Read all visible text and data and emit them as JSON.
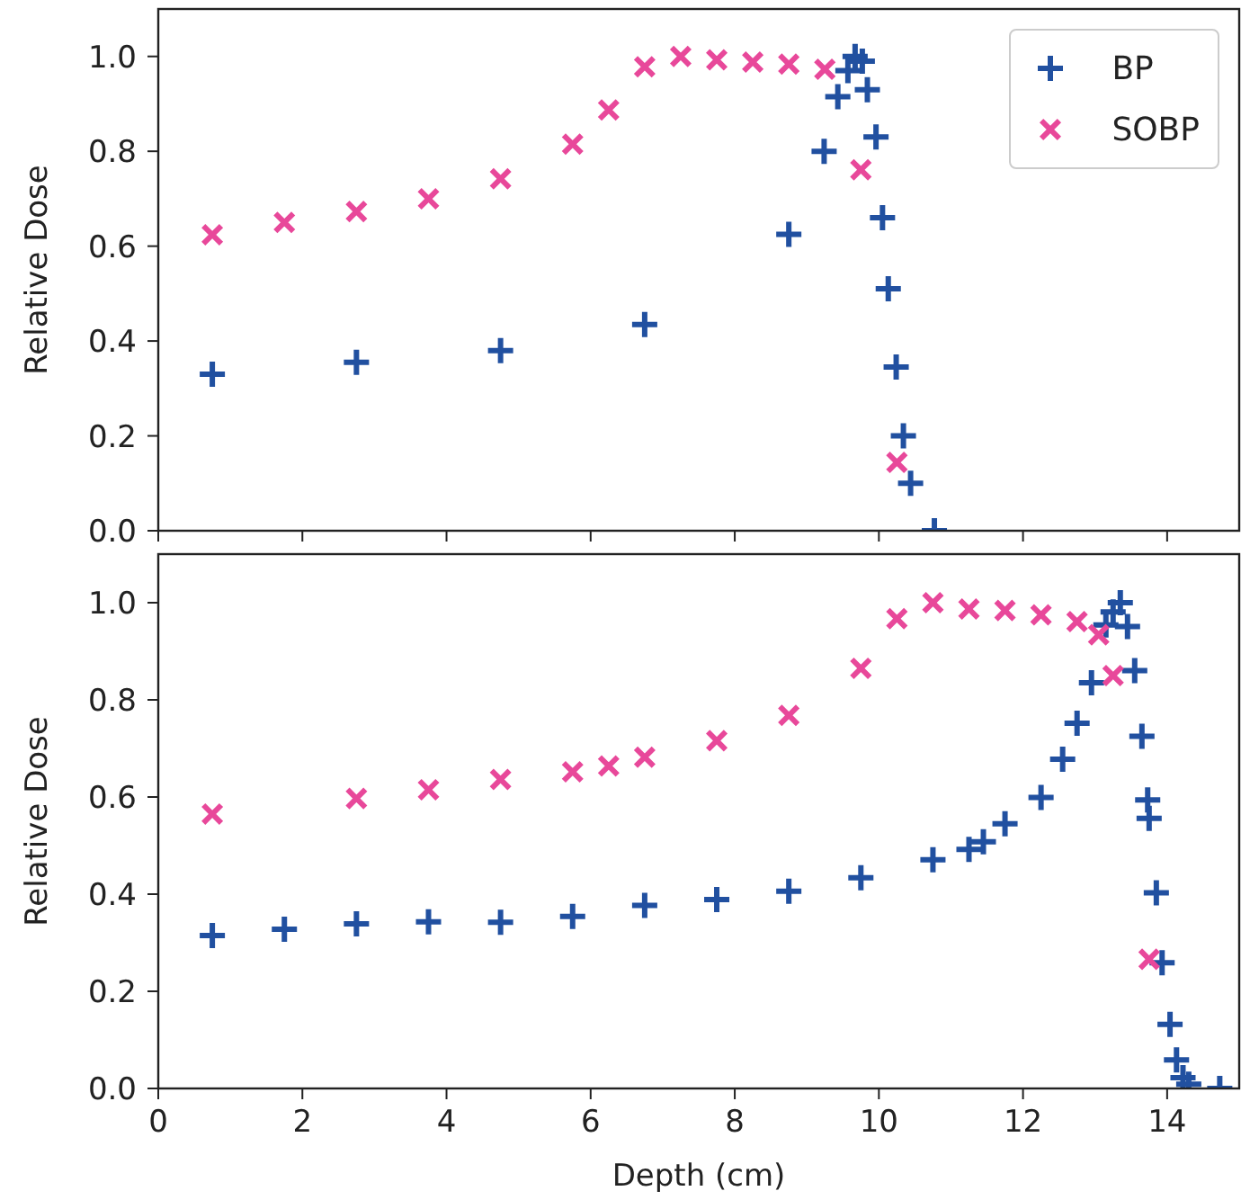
{
  "chart_data": [
    {
      "type": "scatter",
      "ylabel": "Relative Dose",
      "xlim": [
        0,
        15
      ],
      "xticks": [
        {
          "value": 0,
          "label": null
        },
        {
          "value": 2,
          "label": null
        },
        {
          "value": 4,
          "label": null
        },
        {
          "value": 6,
          "label": null
        },
        {
          "value": 8,
          "label": null
        },
        {
          "value": 10,
          "label": null
        },
        {
          "value": 12,
          "label": null
        },
        {
          "value": 14,
          "label": null
        }
      ],
      "ylim": [
        0,
        1.1
      ],
      "yticks": [
        {
          "value": 0,
          "label": "0.0"
        },
        {
          "value": 0.2,
          "label": "0.2"
        },
        {
          "value": 0.4,
          "label": "0.4"
        },
        {
          "value": 0.6,
          "label": "0.6"
        },
        {
          "value": 0.8,
          "label": "0.8"
        },
        {
          "value": 1,
          "label": "1.0"
        }
      ],
      "tick_labels": "y",
      "legend": "top right",
      "grid": false,
      "series": [
        {
          "name": "BP",
          "color": "#2150a0",
          "marker": "cross",
          "x": [
            0.75,
            2.75,
            4.75,
            6.75,
            8.75,
            9.24,
            9.43,
            9.57,
            9.67,
            9.77,
            9.84,
            9.96,
            10.05,
            10.13,
            10.24,
            10.34,
            10.44,
            10.77
          ],
          "values": [
            0.33,
            0.355,
            0.38,
            0.435,
            0.625,
            0.8,
            0.915,
            0.97,
            1.0,
            0.99,
            0.93,
            0.83,
            0.66,
            0.51,
            0.345,
            0.2,
            0.1,
            0.0
          ]
        },
        {
          "name": "SOBP",
          "color": "#e8489a",
          "marker": "cross",
          "x": [
            0.75,
            1.75,
            2.75,
            3.75,
            4.75,
            5.75,
            6.25,
            6.75,
            7.25,
            7.75,
            8.25,
            8.75,
            9.25,
            9.75,
            10.25
          ],
          "values": [
            0.624,
            0.65,
            0.673,
            0.7,
            0.742,
            0.815,
            0.887,
            0.978,
            1.0,
            0.993,
            0.988,
            0.984,
            0.973,
            0.761,
            0.144
          ]
        }
      ]
    },
    {
      "type": "scatter",
      "xlabel": "Depth (cm)",
      "ylabel": "Relative Dose",
      "xlim": [
        0,
        15
      ],
      "xticks": [
        0,
        2,
        4,
        6,
        8,
        10,
        12,
        14
      ],
      "ylim": [
        0,
        1.1
      ],
      "yticks": [
        {
          "value": 0,
          "label": "0.0"
        },
        {
          "value": 0.2,
          "label": "0.2"
        },
        {
          "value": 0.4,
          "label": "0.4"
        },
        {
          "value": 0.6,
          "label": "0.6"
        },
        {
          "value": 0.8,
          "label": "0.8"
        },
        {
          "value": 1,
          "label": "1.0"
        }
      ],
      "grid": false,
      "series": [
        {
          "color": "#2150a0",
          "marker": "cross",
          "x": [
            0.75,
            1.75,
            2.75,
            3.75,
            4.75,
            5.75,
            6.75,
            7.75,
            8.75,
            9.75,
            10.75,
            11.25,
            11.45,
            11.75,
            12.25,
            12.55,
            12.75,
            12.95,
            13.15,
            13.25,
            13.35,
            13.45,
            13.55,
            13.65,
            13.73,
            13.75,
            13.85,
            13.93,
            14.04,
            14.13,
            14.22,
            14.3,
            14.73
          ],
          "values": [
            0.315,
            0.328,
            0.339,
            0.343,
            0.342,
            0.354,
            0.377,
            0.389,
            0.406,
            0.434,
            0.471,
            0.492,
            0.508,
            0.545,
            0.599,
            0.678,
            0.752,
            0.835,
            0.954,
            0.981,
            1.0,
            0.951,
            0.86,
            0.725,
            0.594,
            0.556,
            0.403,
            0.259,
            0.132,
            0.059,
            0.022,
            0.009,
            0.0
          ]
        },
        {
          "color": "#e8489a",
          "marker": "cross",
          "x": [
            0.75,
            2.75,
            3.75,
            4.75,
            5.75,
            6.25,
            6.75,
            7.75,
            8.75,
            9.75,
            10.25,
            10.75,
            11.25,
            11.75,
            12.25,
            12.75,
            13.05,
            13.25,
            13.75
          ],
          "values": [
            0.565,
            0.597,
            0.615,
            0.636,
            0.652,
            0.664,
            0.682,
            0.716,
            0.768,
            0.865,
            0.967,
            1.0,
            0.987,
            0.984,
            0.975,
            0.961,
            0.934,
            0.85,
            0.266
          ]
        }
      ]
    }
  ]
}
